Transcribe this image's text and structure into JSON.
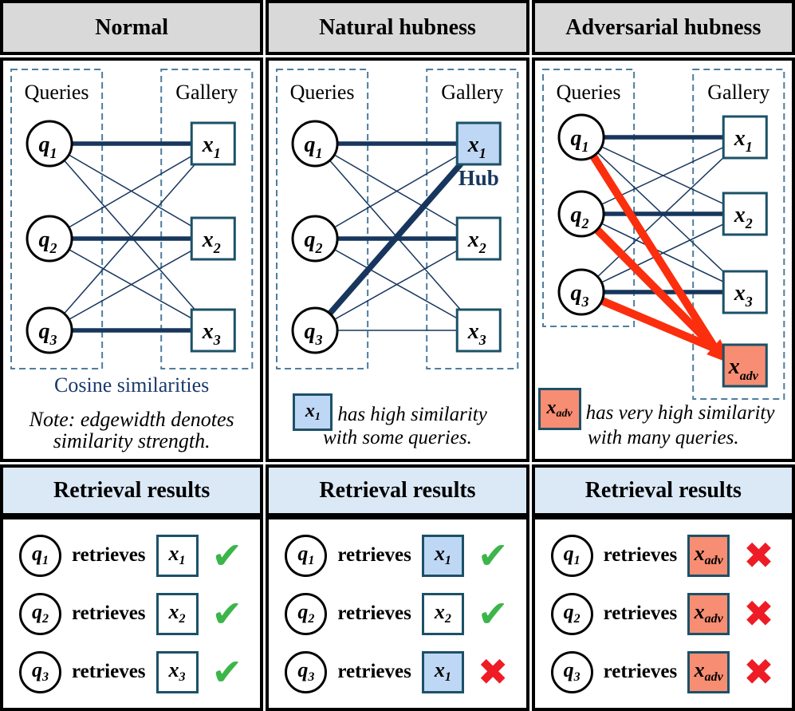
{
  "colors": {
    "edge_navy": "#17365d",
    "edge_red": "#fb2e0d",
    "node_border": "#1c5168",
    "hub_fill": "#bed7f4",
    "adv_fill": "#f78d72",
    "dashed_border": "#4e7d9e",
    "header_bg": "#d9d9d9",
    "results_header_bg": "#dbe9f7",
    "check_green": "#3cb54a",
    "cross_red": "#ee1c25",
    "caption_blue": "#1b3a6b",
    "hub_label": "#17375e"
  },
  "icons": {
    "check": "✔",
    "cross": "✖"
  },
  "panels": [
    {
      "id": "normal",
      "title": "Normal",
      "graph": {
        "queries_label": "Queries",
        "gallery_label": "Gallery",
        "query_nodes": [
          {
            "id": "q1",
            "base": "q",
            "sub": "1"
          },
          {
            "id": "q2",
            "base": "q",
            "sub": "2"
          },
          {
            "id": "q3",
            "base": "q",
            "sub": "3"
          }
        ],
        "gallery_nodes": [
          {
            "id": "x1",
            "base": "x",
            "sub": "1",
            "fill": "white"
          },
          {
            "id": "x2",
            "base": "x",
            "sub": "2",
            "fill": "white"
          },
          {
            "id": "x3",
            "base": "x",
            "sub": "3",
            "fill": "white"
          }
        ],
        "edges": [
          {
            "from": "q1",
            "to": "x1",
            "w": "thick"
          },
          {
            "from": "q2",
            "to": "x2",
            "w": "thick"
          },
          {
            "from": "q3",
            "to": "x3",
            "w": "thick"
          },
          {
            "from": "q1",
            "to": "x2",
            "w": "thin"
          },
          {
            "from": "q1",
            "to": "x3",
            "w": "thin"
          },
          {
            "from": "q2",
            "to": "x1",
            "w": "thin"
          },
          {
            "from": "q2",
            "to": "x3",
            "w": "thin"
          },
          {
            "from": "q3",
            "to": "x1",
            "w": "thin"
          },
          {
            "from": "q3",
            "to": "x2",
            "w": "thin"
          }
        ]
      },
      "caption": {
        "title": "Cosine similarities",
        "note1": "Note: edgewidth denotes",
        "note2": "similarity strength."
      },
      "results_header": "Retrieval results",
      "results": [
        {
          "q": {
            "base": "q",
            "sub": "1"
          },
          "verb": "retrieves",
          "item": {
            "base": "x",
            "sub": "1",
            "fill": "white"
          },
          "mark": "check"
        },
        {
          "q": {
            "base": "q",
            "sub": "2"
          },
          "verb": "retrieves",
          "item": {
            "base": "x",
            "sub": "2",
            "fill": "white"
          },
          "mark": "check"
        },
        {
          "q": {
            "base": "q",
            "sub": "3"
          },
          "verb": "retrieves",
          "item": {
            "base": "x",
            "sub": "3",
            "fill": "white"
          },
          "mark": "check"
        }
      ]
    },
    {
      "id": "natural-hubness",
      "title": "Natural hubness",
      "graph": {
        "queries_label": "Queries",
        "gallery_label": "Gallery",
        "query_nodes": [
          {
            "id": "q1",
            "base": "q",
            "sub": "1"
          },
          {
            "id": "q2",
            "base": "q",
            "sub": "2"
          },
          {
            "id": "q3",
            "base": "q",
            "sub": "3"
          }
        ],
        "gallery_nodes": [
          {
            "id": "x1",
            "base": "x",
            "sub": "1",
            "fill": "hub",
            "tag": "Hub"
          },
          {
            "id": "x2",
            "base": "x",
            "sub": "2",
            "fill": "white"
          },
          {
            "id": "x3",
            "base": "x",
            "sub": "3",
            "fill": "white"
          }
        ],
        "edges": [
          {
            "from": "q1",
            "to": "x1",
            "w": "thick"
          },
          {
            "from": "q2",
            "to": "x2",
            "w": "thick"
          },
          {
            "from": "q3",
            "to": "x1",
            "w": "thick2"
          },
          {
            "from": "q1",
            "to": "x2",
            "w": "thin"
          },
          {
            "from": "q1",
            "to": "x3",
            "w": "thin"
          },
          {
            "from": "q2",
            "to": "x1",
            "w": "thin"
          },
          {
            "from": "q2",
            "to": "x3",
            "w": "thin"
          },
          {
            "from": "q3",
            "to": "x2",
            "w": "thin"
          },
          {
            "from": "q3",
            "to": "x3",
            "w": "thin"
          }
        ]
      },
      "caption": {
        "box": {
          "base": "x",
          "sub": "1",
          "fill": "hub"
        },
        "text1": "has high similarity",
        "text2": "with some queries."
      },
      "results_header": "Retrieval results",
      "results": [
        {
          "q": {
            "base": "q",
            "sub": "1"
          },
          "verb": "retrieves",
          "item": {
            "base": "x",
            "sub": "1",
            "fill": "hub"
          },
          "mark": "check"
        },
        {
          "q": {
            "base": "q",
            "sub": "2"
          },
          "verb": "retrieves",
          "item": {
            "base": "x",
            "sub": "2",
            "fill": "white"
          },
          "mark": "check"
        },
        {
          "q": {
            "base": "q",
            "sub": "3"
          },
          "verb": "retrieves",
          "item": {
            "base": "x",
            "sub": "1",
            "fill": "hub"
          },
          "mark": "cross"
        }
      ]
    },
    {
      "id": "adversarial-hubness",
      "title": "Adversarial hubness",
      "graph": {
        "queries_label": "Queries",
        "gallery_label": "Gallery",
        "query_nodes": [
          {
            "id": "q1",
            "base": "q",
            "sub": "1"
          },
          {
            "id": "q2",
            "base": "q",
            "sub": "2"
          },
          {
            "id": "q3",
            "base": "q",
            "sub": "3"
          }
        ],
        "gallery_nodes": [
          {
            "id": "x1",
            "base": "x",
            "sub": "1",
            "fill": "white"
          },
          {
            "id": "x2",
            "base": "x",
            "sub": "2",
            "fill": "white"
          },
          {
            "id": "x3",
            "base": "x",
            "sub": "3",
            "fill": "white"
          },
          {
            "id": "xadv",
            "base": "x",
            "sub": "adv",
            "fill": "adv"
          }
        ],
        "edges": [
          {
            "from": "q1",
            "to": "x1",
            "w": "thick"
          },
          {
            "from": "q2",
            "to": "x2",
            "w": "thick"
          },
          {
            "from": "q3",
            "to": "x3",
            "w": "thick"
          },
          {
            "from": "q1",
            "to": "x2",
            "w": "thin"
          },
          {
            "from": "q1",
            "to": "x3",
            "w": "thin"
          },
          {
            "from": "q2",
            "to": "x1",
            "w": "thin"
          },
          {
            "from": "q2",
            "to": "x3",
            "w": "thin"
          },
          {
            "from": "q3",
            "to": "x1",
            "w": "thin"
          },
          {
            "from": "q3",
            "to": "x2",
            "w": "thin"
          },
          {
            "from": "q1",
            "to": "xadv",
            "w": "red"
          },
          {
            "from": "q2",
            "to": "xadv",
            "w": "red"
          },
          {
            "from": "q3",
            "to": "xadv",
            "w": "red"
          }
        ]
      },
      "caption": {
        "box": {
          "base": "x",
          "sub": "adv",
          "fill": "adv"
        },
        "text1": "has very high similarity",
        "text2": "with many queries."
      },
      "results_header": "Retrieval results",
      "results": [
        {
          "q": {
            "base": "q",
            "sub": "1"
          },
          "verb": "retrieves",
          "item": {
            "base": "x",
            "sub": "adv",
            "fill": "adv"
          },
          "mark": "cross"
        },
        {
          "q": {
            "base": "q",
            "sub": "2"
          },
          "verb": "retrieves",
          "item": {
            "base": "x",
            "sub": "adv",
            "fill": "adv"
          },
          "mark": "cross"
        },
        {
          "q": {
            "base": "q",
            "sub": "3"
          },
          "verb": "retrieves",
          "item": {
            "base": "x",
            "sub": "adv",
            "fill": "adv"
          },
          "mark": "cross"
        }
      ]
    }
  ]
}
